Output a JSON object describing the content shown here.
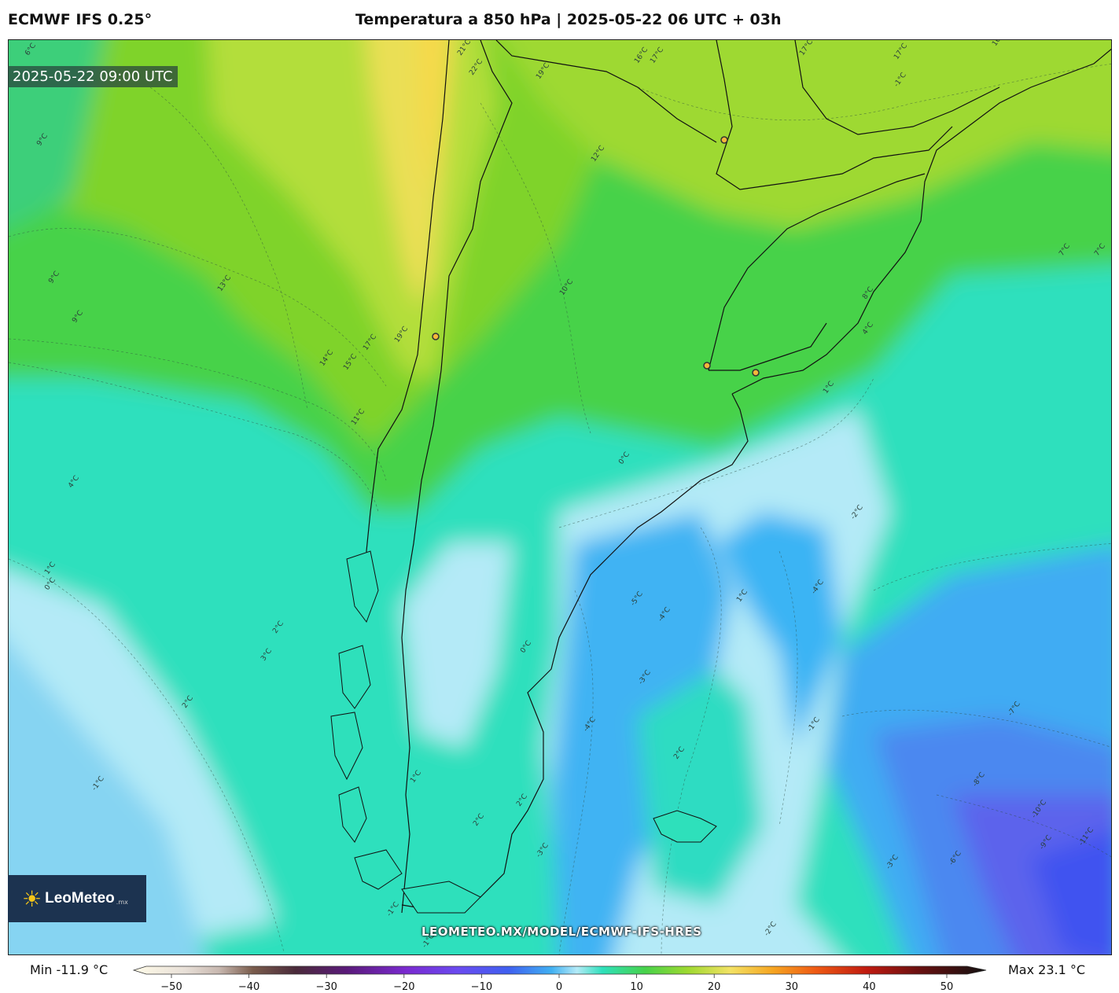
{
  "header": {
    "model": "ECMWF IFS 0.25°",
    "title": "Temperatura a 850 hPa | 2025-05-22 06 UTC + 03h"
  },
  "map": {
    "valid_time": "2025-05-22 09:00 UTC",
    "watermark": "LEOMETEO.MX/MODEL/ECMWF-IFS-HRES",
    "contour_labels": [
      "17°C",
      "17°C",
      "16°C",
      "16°C",
      "17°C",
      "12°C",
      "9°C",
      "9°C",
      "9°C",
      "13°C",
      "14°C",
      "15°C",
      "17°C",
      "19°C",
      "11°C",
      "4°C",
      "1°C",
      "0°C",
      "2°C",
      "3°C",
      "2°C",
      "-1°C",
      "-1°C",
      "-5°C",
      "-4°C",
      "-3°C",
      "-4°C",
      "-1°C",
      "1°C",
      "2°C",
      "-2°C",
      "-3°C",
      "2°C",
      "-4°C",
      "-7°C",
      "-8°C",
      "-10°C",
      "-11°C",
      "-9°C",
      "-3°C",
      "-6°C",
      "-1°C",
      "0°C",
      "1°C",
      "2°C",
      "-2°C",
      "-1°C",
      "7°C",
      "7°C",
      "8°C",
      "4°C",
      "1°C",
      "0°C",
      "10°C",
      "21°C",
      "22°C",
      "19°C",
      "6°C"
    ],
    "colors": {
      "warm_yellow": "#f3e264",
      "green": "#8fd32a",
      "teal": "#2ee0bb",
      "light_blue": "#b3e9fb",
      "blue": "#40b0f2",
      "violet": "#5f62ec",
      "deep_blue": "#3e53f0"
    }
  },
  "logo": {
    "name": "LeoMeteo",
    "suffix": ".mx"
  },
  "colorbar": {
    "min_label": "Min -11.9 °C",
    "max_label": "Max 23.1 °C",
    "ticks": [
      "−50",
      "−40",
      "−30",
      "−20",
      "−10",
      "0",
      "10",
      "20",
      "30",
      "40",
      "50"
    ]
  }
}
